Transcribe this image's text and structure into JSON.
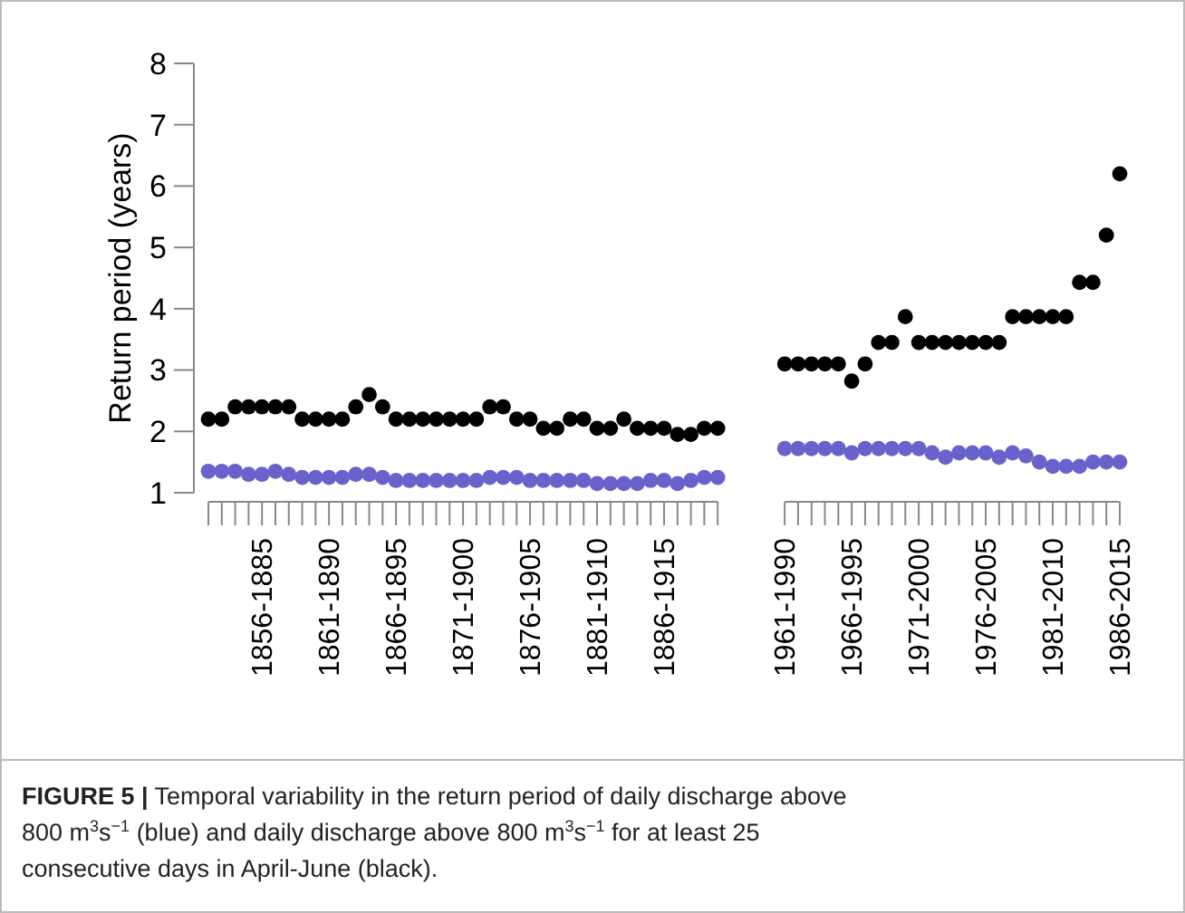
{
  "chart_data": {
    "type": "scatter",
    "ylabel": "Return period (years)",
    "marker": "circle",
    "categories": [
      null,
      null,
      null,
      null,
      "1856-1885",
      null,
      null,
      null,
      null,
      "1861-1890",
      null,
      null,
      null,
      null,
      "1866-1895",
      null,
      null,
      null,
      null,
      "1871-1900",
      null,
      null,
      null,
      null,
      "1876-1905",
      null,
      null,
      null,
      null,
      "1881-1910",
      null,
      null,
      null,
      null,
      "1886-1915",
      null,
      null,
      null,
      null,
      null,
      null,
      null,
      null,
      "1961-1990",
      null,
      null,
      null,
      null,
      "1966-1995",
      null,
      null,
      null,
      null,
      "1971-2000",
      null,
      null,
      null,
      null,
      "1976-2005",
      null,
      null,
      null,
      null,
      "1981-2010",
      null,
      null,
      null,
      null,
      "1986-2015"
    ],
    "ylim": [
      1,
      8
    ],
    "yticks": [
      1,
      2,
      3,
      4,
      5,
      6,
      7,
      8
    ],
    "series": [
      {
        "color": "#6a62cc",
        "values": [
          1.35,
          1.35,
          1.35,
          1.3,
          1.3,
          1.35,
          1.3,
          1.25,
          1.25,
          1.25,
          1.25,
          1.3,
          1.3,
          1.25,
          1.2,
          1.2,
          1.2,
          1.2,
          1.2,
          1.2,
          1.2,
          1.25,
          1.25,
          1.25,
          1.2,
          1.2,
          1.2,
          1.2,
          1.2,
          1.15,
          1.15,
          1.15,
          1.15,
          1.2,
          1.2,
          1.15,
          1.2,
          1.25,
          1.25,
          null,
          null,
          null,
          null,
          1.72,
          1.72,
          1.72,
          1.72,
          1.72,
          1.65,
          1.72,
          1.72,
          1.72,
          1.72,
          1.72,
          1.65,
          1.58,
          1.65,
          1.65,
          1.65,
          1.58,
          1.65,
          1.6,
          1.5,
          1.43,
          1.43,
          1.43,
          1.5,
          1.5,
          1.5
        ]
      },
      {
        "color": "#000000",
        "values": [
          2.2,
          2.2,
          2.4,
          2.4,
          2.4,
          2.4,
          2.4,
          2.2,
          2.2,
          2.2,
          2.2,
          2.4,
          2.6,
          2.4,
          2.2,
          2.2,
          2.2,
          2.2,
          2.2,
          2.2,
          2.2,
          2.4,
          2.4,
          2.2,
          2.2,
          2.05,
          2.05,
          2.2,
          2.2,
          2.05,
          2.05,
          2.2,
          2.05,
          2.05,
          2.05,
          1.95,
          1.95,
          2.05,
          2.05,
          null,
          null,
          null,
          null,
          3.1,
          3.1,
          3.1,
          3.1,
          3.1,
          2.82,
          3.1,
          3.45,
          3.45,
          3.87,
          3.45,
          3.45,
          3.45,
          3.45,
          3.45,
          3.45,
          3.45,
          3.87,
          3.87,
          3.87,
          3.87,
          3.87,
          4.43,
          4.43,
          5.2,
          6.2
        ]
      }
    ],
    "annotations": [
      "FIGURE 5 | Temporal variability in the return period of daily discharge above 800 m$^{3}$s$^{−1}$ (blue) and daily discharge above 800 m$^{3}$s$^{−1}$ for at least 25 consecutive days in April-June (black)."
    ]
  }
}
